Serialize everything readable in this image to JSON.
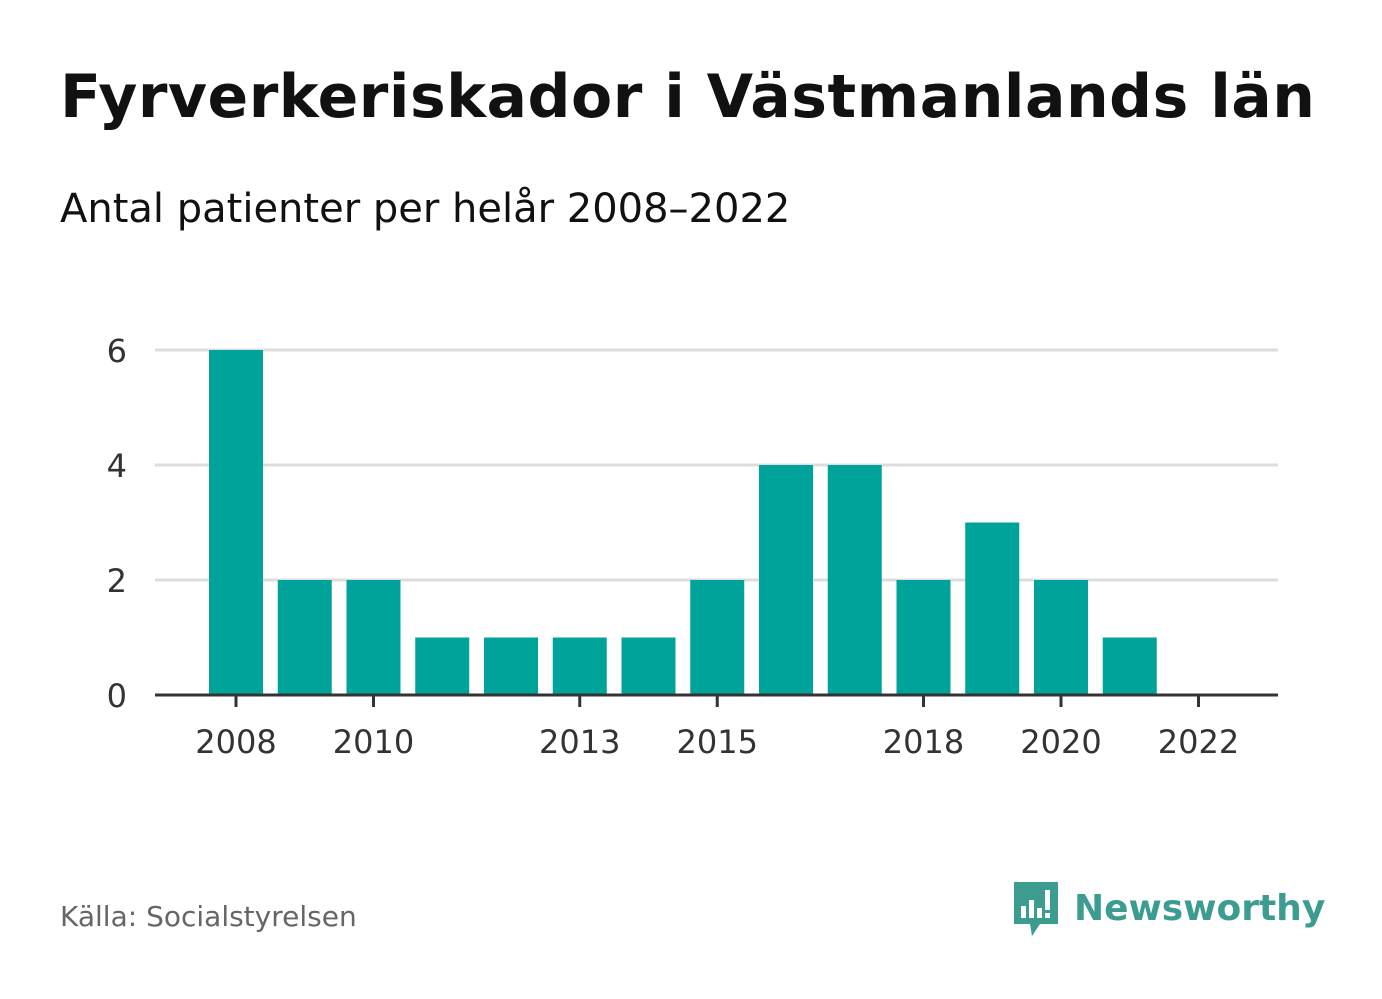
{
  "header": {
    "title": "Fyrverkeriskador i Västmanlands län",
    "subtitle": "Antal patienter per helår 2008–2022"
  },
  "footer": {
    "source": "Källa: Socialstyrelsen",
    "brand": "Newsworthy",
    "brand_icon": "newsworthy-logo-icon",
    "brand_color": "#3d9c90"
  },
  "colors": {
    "bar": "#00a39a",
    "grid": "#dddddd",
    "axis": "#333333",
    "tick_text": "#333333"
  },
  "chart_data": {
    "type": "bar",
    "categories": [
      "2008",
      "2009",
      "2010",
      "2011",
      "2012",
      "2013",
      "2014",
      "2015",
      "2016",
      "2017",
      "2018",
      "2019",
      "2020",
      "2021",
      "2022"
    ],
    "values": [
      6,
      2,
      2,
      1,
      1,
      1,
      1,
      2,
      4,
      4,
      2,
      3,
      2,
      1,
      0
    ],
    "x_tick_labels": [
      "2008",
      "2010",
      "2013",
      "2015",
      "2018",
      "2020",
      "2022"
    ],
    "y_ticks": [
      0,
      2,
      4,
      6
    ],
    "ylim": [
      0,
      6
    ],
    "grid": true,
    "legend": false
  }
}
